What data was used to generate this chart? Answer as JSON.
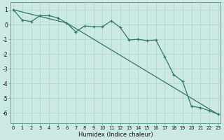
{
  "xlabel": "Humidex (Indice chaleur)",
  "background_color": "#cce9e4",
  "grid_color": "#b0d8d0",
  "line_color": "#2a7a6a",
  "xlim": [
    -0.3,
    23.3
  ],
  "ylim": [
    -6.7,
    1.5
  ],
  "yticks": [
    1,
    0,
    -1,
    -2,
    -3,
    -4,
    -5,
    -6
  ],
  "xticks": [
    0,
    1,
    2,
    3,
    4,
    5,
    6,
    7,
    8,
    9,
    10,
    11,
    12,
    13,
    14,
    15,
    16,
    17,
    18,
    19,
    20,
    21,
    22,
    23
  ],
  "line1_x": [
    0,
    1,
    2,
    3,
    4,
    5,
    6,
    7,
    8,
    9,
    10,
    11,
    12,
    13,
    14,
    15,
    16,
    17,
    18,
    19,
    20,
    21,
    22,
    23
  ],
  "line1_y": [
    1.0,
    0.3,
    0.2,
    0.6,
    0.6,
    0.45,
    0.1,
    -0.5,
    -0.1,
    -0.15,
    -0.15,
    0.25,
    -0.2,
    -1.05,
    -1.0,
    -1.1,
    -1.05,
    -2.2,
    -3.4,
    -3.85,
    -5.55,
    -5.65,
    -5.85,
    -6.1
  ],
  "line2_x": [
    0,
    6,
    23
  ],
  "line2_y": [
    1.0,
    0.1,
    -6.1
  ]
}
